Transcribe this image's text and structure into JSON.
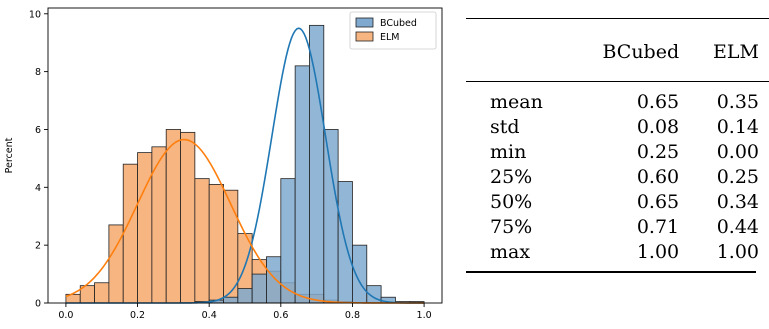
{
  "chart_data": {
    "type": "bar",
    "ylabel": "Percent",
    "xlim": [
      -0.05,
      1.05
    ],
    "ylim": [
      0,
      10.2
    ],
    "xticks": [
      "0.0",
      "0.2",
      "0.4",
      "0.6",
      "0.8",
      "1.0"
    ],
    "xtick_values": [
      0.0,
      0.2,
      0.4,
      0.6,
      0.8,
      1.0
    ],
    "yticks": [
      "0",
      "2",
      "4",
      "6",
      "8",
      "10"
    ],
    "ytick_values": [
      0,
      2,
      4,
      6,
      8,
      10
    ],
    "bin_edges": [
      0.0,
      0.04,
      0.08,
      0.12,
      0.16,
      0.2,
      0.24,
      0.28,
      0.32,
      0.36,
      0.4,
      0.44,
      0.48,
      0.52,
      0.56,
      0.6,
      0.64,
      0.68,
      0.72,
      0.76,
      0.8,
      0.84,
      0.88,
      0.92,
      0.96,
      1.0
    ],
    "legend_position": "top-right",
    "grid": false,
    "series": [
      {
        "name": "BCubed",
        "color": "#1f77b4",
        "fill": "#7fa9cf",
        "values": [
          0,
          0,
          0,
          0,
          0,
          0,
          0,
          0,
          0,
          0.05,
          0.1,
          0.2,
          0.5,
          1.0,
          1.6,
          4.3,
          8.2,
          9.6,
          6.0,
          4.2,
          2.0,
          0.6,
          0.2,
          0.05,
          0.02
        ],
        "kde_peak": 9.5,
        "kde_mean": 0.65,
        "kde_std": 0.075
      },
      {
        "name": "ELM",
        "color": "#ff7f0e",
        "fill": "#f7b582",
        "values": [
          0.3,
          0.6,
          0.7,
          2.7,
          4.8,
          5.2,
          5.4,
          6.0,
          5.9,
          4.3,
          4.1,
          3.9,
          2.4,
          1.5,
          1.1,
          0.7,
          0.3,
          0.3,
          0.1,
          0.05,
          0,
          0,
          0,
          0,
          0.05
        ],
        "kde_peak": 5.65,
        "kde_mean": 0.33,
        "kde_std": 0.13
      }
    ]
  },
  "table": {
    "columns": [
      "",
      "BCubed",
      "ELM"
    ],
    "rows": [
      {
        "label": "mean",
        "bcubed": "0.65",
        "elm": "0.35"
      },
      {
        "label": "std",
        "bcubed": "0.08",
        "elm": "0.14"
      },
      {
        "label": "min",
        "bcubed": "0.25",
        "elm": "0.00"
      },
      {
        "label": "25%",
        "bcubed": "0.60",
        "elm": "0.25"
      },
      {
        "label": "50%",
        "bcubed": "0.65",
        "elm": "0.34"
      },
      {
        "label": "75%",
        "bcubed": "0.71",
        "elm": "0.44"
      },
      {
        "label": "max",
        "bcubed": "1.00",
        "elm": "1.00"
      }
    ]
  }
}
